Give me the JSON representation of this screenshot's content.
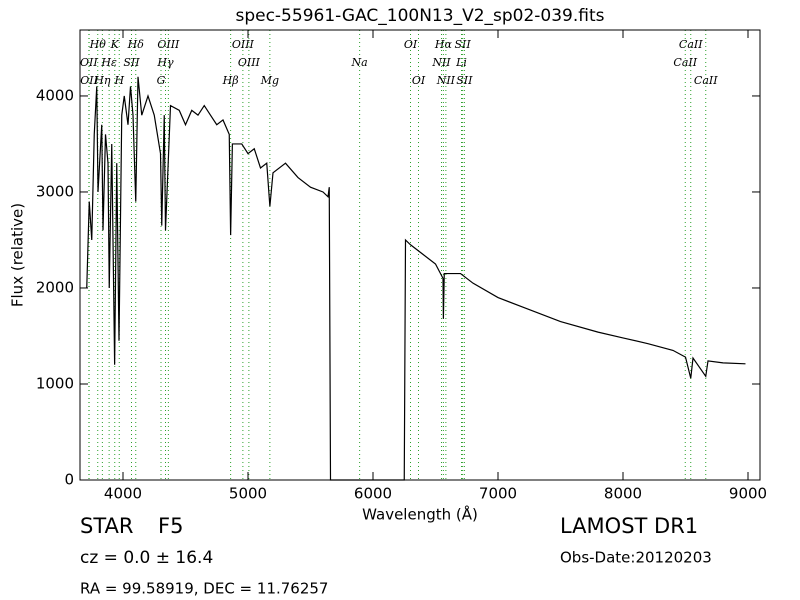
{
  "chart_data": {
    "type": "line",
    "title": "spec-55961-GAC_100N13_V2_sp02-039.fits",
    "xlabel": "Wavelength (Å)",
    "ylabel": "Flux (relative)",
    "xlim": [
      3656,
      9096
    ],
    "ylim": [
      0,
      4687
    ],
    "xticks": [
      4000,
      5000,
      6000,
      7000,
      8000,
      9000
    ],
    "yticks": [
      0,
      1000,
      2000,
      3000,
      4000
    ],
    "color": "#000000",
    "line_color": "#2ca02c",
    "x": [
      3710,
      3730,
      3750,
      3770,
      3790,
      3800,
      3830,
      3840,
      3860,
      3880,
      3890,
      3910,
      3933,
      3950,
      3968,
      3990,
      4010,
      4040,
      4060,
      4080,
      4102,
      4120,
      4150,
      4200,
      4250,
      4300,
      4310,
      4330,
      4340,
      4380,
      4450,
      4500,
      4550,
      4600,
      4650,
      4700,
      4750,
      4800,
      4850,
      4861,
      4875,
      4950,
      5000,
      5050,
      5100,
      5150,
      5175,
      5200,
      5300,
      5400,
      5500,
      5600,
      5640,
      5650,
      5660,
      6250,
      6260,
      6300,
      6400,
      6500,
      6560,
      6563,
      6570,
      6700,
      6800,
      7000,
      7200,
      7500,
      7800,
      8000,
      8200,
      8400,
      8500,
      8542,
      8560,
      8662,
      8680,
      8800,
      8980
    ],
    "values": [
      2000,
      2900,
      2500,
      3600,
      4100,
      3000,
      3700,
      2600,
      3600,
      3300,
      2000,
      3500,
      1200,
      3300,
      1450,
      3800,
      4000,
      3700,
      4100,
      3800,
      2900,
      4200,
      3800,
      4000,
      3800,
      3400,
      2650,
      3800,
      2600,
      3900,
      3850,
      3700,
      3850,
      3800,
      3900,
      3800,
      3700,
      3750,
      3600,
      2550,
      3500,
      3500,
      3400,
      3450,
      3250,
      3300,
      2850,
      3200,
      3300,
      3150,
      3050,
      3000,
      2950,
      3050,
      0,
      0,
      2500,
      2450,
      2350,
      2250,
      2100,
      1680,
      2150,
      2150,
      2050,
      1900,
      1800,
      1650,
      1540,
      1480,
      1420,
      1350,
      1280,
      1060,
      1270,
      1080,
      1240,
      1220,
      1210
    ],
    "spectral_lines": [
      [
        {
          "label": "Hθ",
          "wavelength": 3798
        },
        {
          "label": "K",
          "wavelength": 3934
        },
        {
          "label": "Hδ",
          "wavelength": 4102
        },
        {
          "label": "OIII",
          "wavelength": 4363
        },
        {
          "label": "OIII",
          "wavelength": 4959
        },
        {
          "label": "OI",
          "wavelength": 6300
        },
        {
          "label": "Hα",
          "wavelength": 6563
        },
        {
          "label": "SII",
          "wavelength": 6717
        },
        {
          "label": "CaII",
          "wavelength": 8542
        }
      ],
      [
        {
          "label": "OII",
          "wavelength": 3727
        },
        {
          "label": "Hε",
          "wavelength": 3889
        },
        {
          "label": "SII",
          "wavelength": 4068
        },
        {
          "label": "Hγ",
          "wavelength": 4340
        },
        {
          "label": "OIII",
          "wavelength": 5007
        },
        {
          "label": "Na",
          "wavelength": 5893
        },
        {
          "label": "NII",
          "wavelength": 6548
        },
        {
          "label": "Li",
          "wavelength": 6708
        },
        {
          "label": "CaII",
          "wavelength": 8498
        }
      ],
      [
        {
          "label": "OII",
          "wavelength": 3729
        },
        {
          "label": "Hη",
          "wavelength": 3835
        },
        {
          "label": "H",
          "wavelength": 3970
        },
        {
          "label": "G",
          "wavelength": 4304
        },
        {
          "label": "Hβ",
          "wavelength": 4861
        },
        {
          "label": "Mg",
          "wavelength": 5175
        },
        {
          "label": "OI",
          "wavelength": 6364
        },
        {
          "label": "NII",
          "wavelength": 6583
        },
        {
          "label": "SII",
          "wavelength": 6731
        },
        {
          "label": "CaII",
          "wavelength": 8662
        }
      ]
    ],
    "object_class": "STAR",
    "subclass": "F5",
    "redshift_text": "cz = 0.0 ± 16.4",
    "coords_text": "RA = 99.58919, DEC = 11.76257",
    "survey": "LAMOST DR1",
    "obs_date": "Obs-Date:20120203"
  }
}
